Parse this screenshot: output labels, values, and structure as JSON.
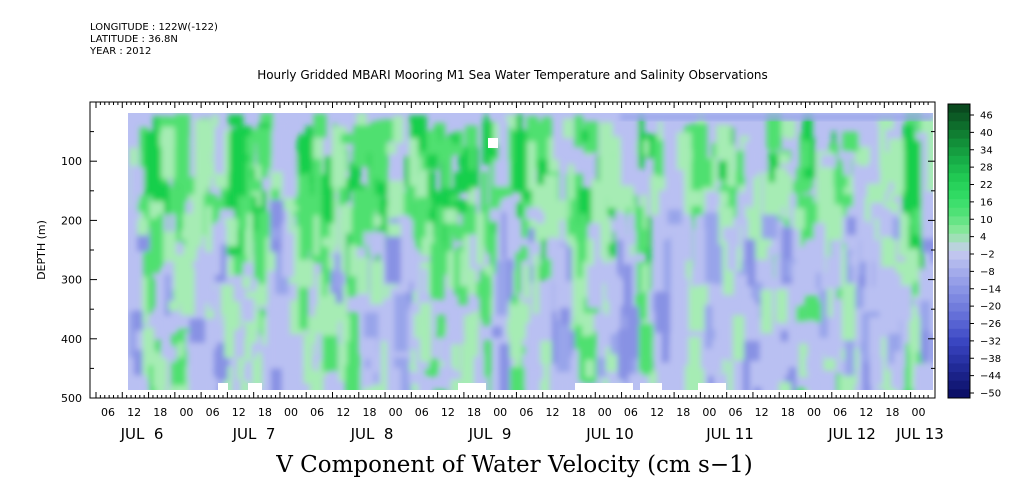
{
  "header": {
    "longitude": "LONGITUDE : 122W(-122)",
    "latitude": "LATITUDE : 36.8N",
    "year": "YEAR : 2012"
  },
  "chart_data": {
    "type": "heatmap",
    "title": "Hourly Gridded MBARI Mooring M1 Sea Water Temperature and Salinity Observations",
    "variable_label": "V Component of Water Velocity (cm s−1)",
    "ylabel": "DEPTH (m)",
    "ylim": [
      0,
      500
    ],
    "y_inverted": true,
    "y_ticks": [
      100,
      200,
      300,
      400,
      500
    ],
    "y_tick_labels": [
      "100",
      "200",
      "300",
      "400",
      "500"
    ],
    "x_hour_labels": [
      "06",
      "12",
      "18",
      "00",
      "06",
      "12",
      "18",
      "00",
      "06",
      "12",
      "18",
      "00",
      "06",
      "12",
      "18",
      "00",
      "06",
      "12",
      "18",
      "00",
      "06",
      "12",
      "18",
      "00",
      "06",
      "12",
      "18",
      "00",
      "06",
      "12",
      "18",
      "00"
    ],
    "x_date_labels": [
      "JUL  6",
      "JUL  7",
      "JUL  8",
      "JUL  9",
      "JUL 10",
      "JUL 11",
      "JUL 12",
      "JUL 13"
    ],
    "colorbar": {
      "labels": [
        "46",
        "40",
        "34",
        "28",
        "22",
        "16",
        "10",
        "4",
        "−2",
        "−8",
        "−14",
        "−20",
        "−26",
        "−32",
        "−38",
        "−44",
        "−50"
      ],
      "colors": [
        "#0a4a1f",
        "#0e6e2c",
        "#12913a",
        "#18b048",
        "#22cc55",
        "#33dd66",
        "#55e27a",
        "#8fe8a0",
        "#c8ccf0",
        "#a9b0ec",
        "#8e98e6",
        "#7580de",
        "#5a66d4",
        "#3c48c4",
        "#2a34a8",
        "#1a2288",
        "#0c1068"
      ]
    },
    "palette": {
      "strong_green": "#18cf4c",
      "mid_green": "#4fe070",
      "light_green": "#a6ecb4",
      "light_blue": "#b9c0f2",
      "mid_blue": "#98a4ea",
      "deep_blue": "#8892e4"
    }
  }
}
